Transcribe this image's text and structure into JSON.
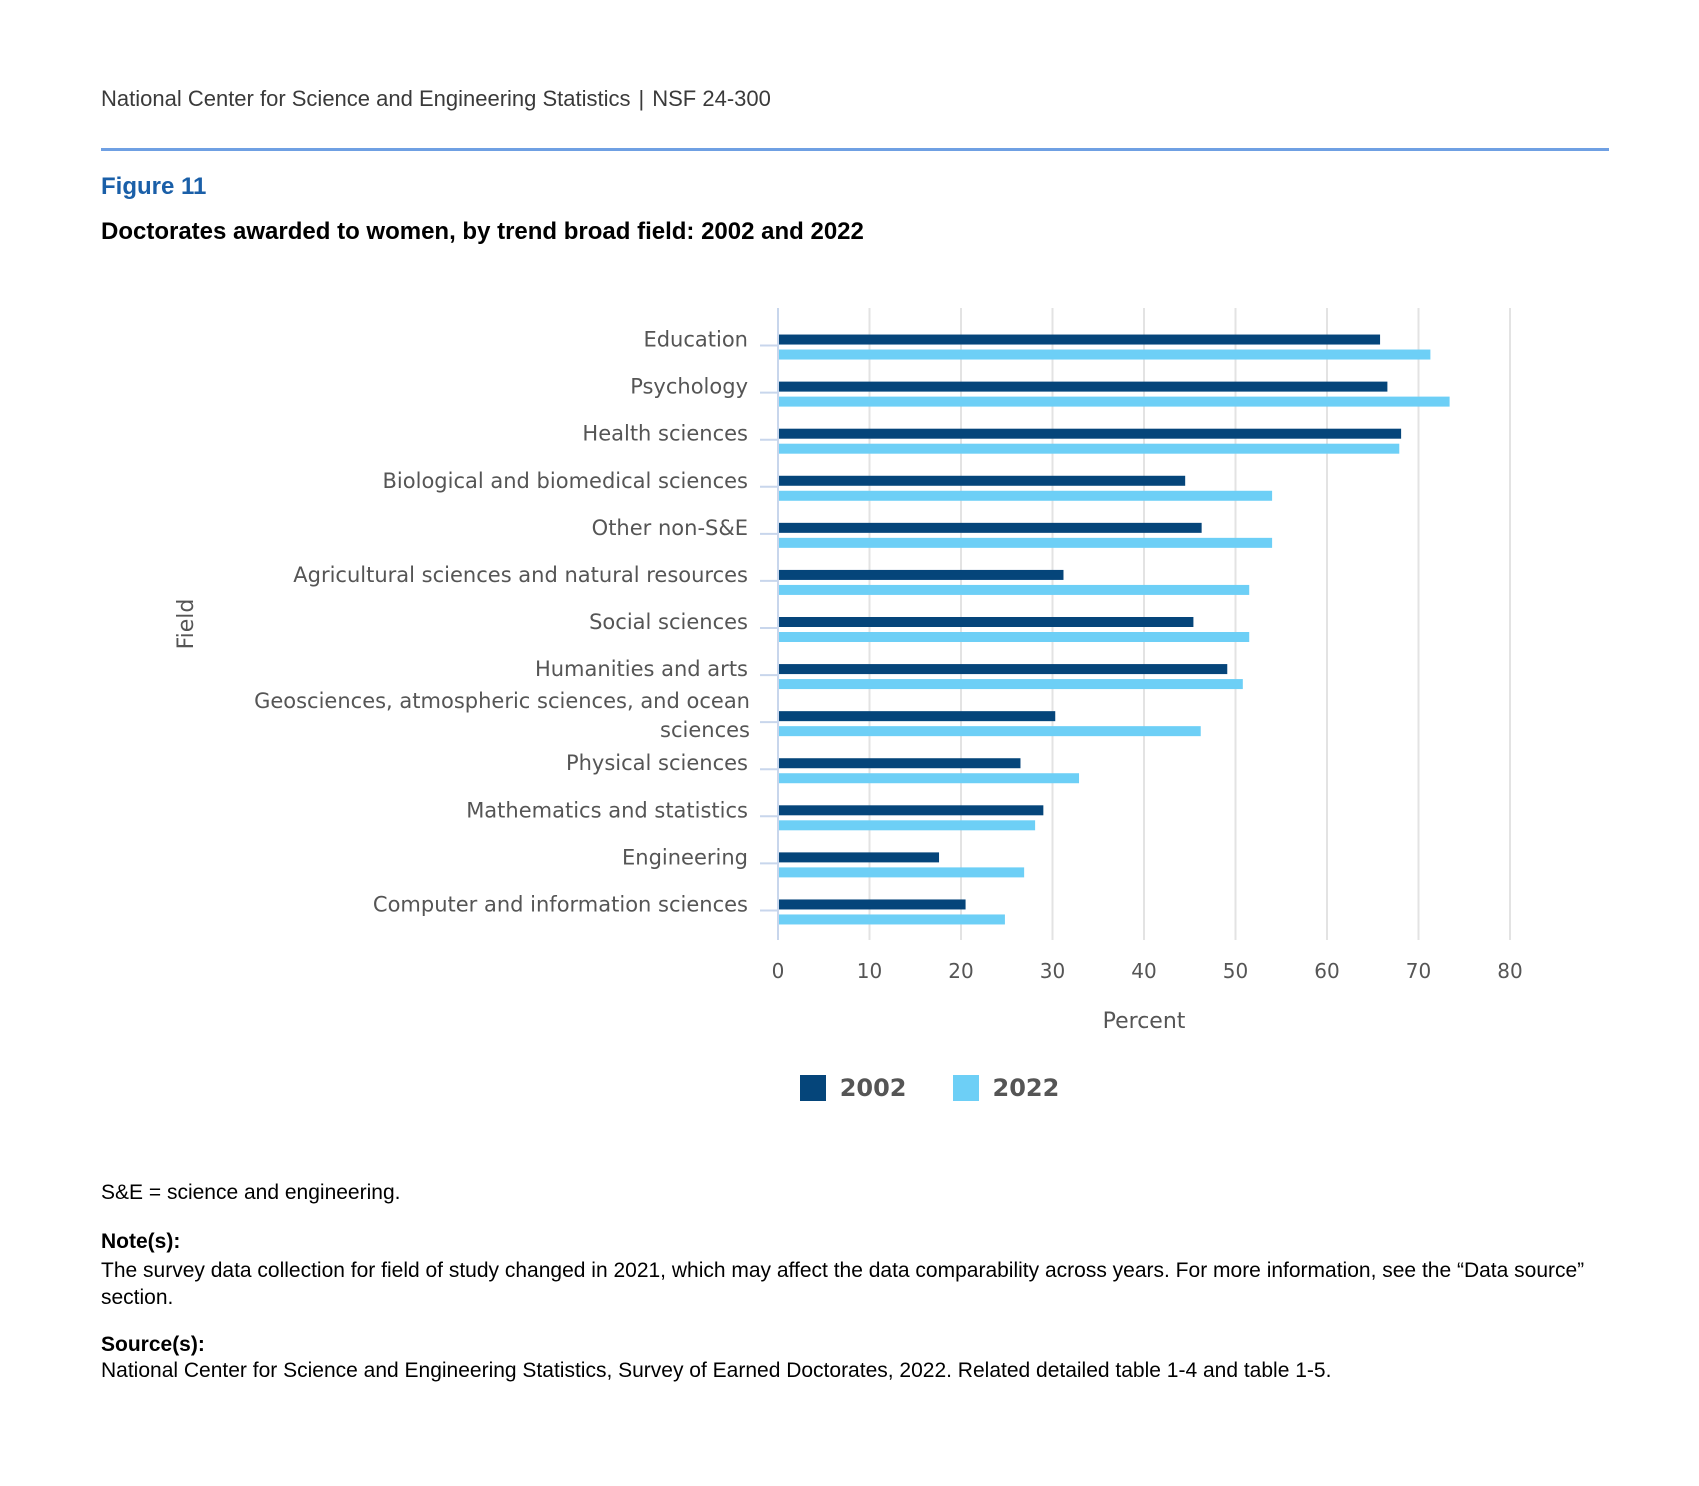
{
  "header": {
    "org": "National Center for Science and Engineering Statistics",
    "separator": "|",
    "report": "NSF 24-300"
  },
  "figure": {
    "label": "Figure 11",
    "title": "Doctorates awarded to women, by trend broad field: 2002 and 2022"
  },
  "chart_data": {
    "type": "bar",
    "orientation": "horizontal",
    "xlabel": "Percent",
    "ylabel": "Field",
    "xlim": [
      0,
      80
    ],
    "xticks": [
      0,
      10,
      20,
      30,
      40,
      50,
      60,
      70,
      80
    ],
    "grid": true,
    "legend_placement": "bottom",
    "categories": [
      "Education",
      "Psychology",
      "Health sciences",
      "Biological and biomedical sciences",
      "Other non-S&E",
      "Agricultural sciences and natural resources",
      "Social sciences",
      "Humanities and arts",
      "Geosciences, atmospheric sciences, and ocean sciences",
      "Physical sciences",
      "Mathematics and statistics",
      "Engineering",
      "Computer and information sciences"
    ],
    "series": [
      {
        "name": "2002",
        "color": "#05457a",
        "values": [
          65.8,
          66.6,
          68.1,
          44.5,
          46.3,
          31.2,
          45.4,
          49.1,
          30.3,
          26.5,
          29.0,
          17.6,
          20.5
        ]
      },
      {
        "name": "2022",
        "color": "#6dcff6",
        "values": [
          71.3,
          73.4,
          67.9,
          54.0,
          54.0,
          51.5,
          51.5,
          50.8,
          46.2,
          32.9,
          28.1,
          26.9,
          24.8
        ]
      }
    ]
  },
  "footnote": "S&E = science and engineering.",
  "notes": {
    "heading": "Note(s):",
    "text": "The survey data collection for field of study changed in 2021, which may affect the data comparability across years. For more information, see the “Data source” section."
  },
  "source": {
    "heading": "Source(s):",
    "text": "National Center for Science and Engineering Statistics, Survey of Earned Doctorates, 2022. Related detailed table 1-4 and table 1-5."
  }
}
